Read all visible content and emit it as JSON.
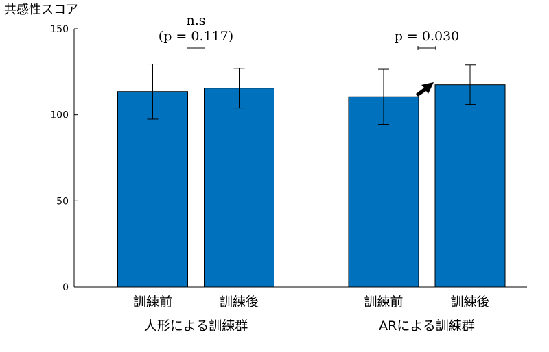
{
  "chart_data": {
    "type": "bar",
    "ylabel": "共感性スコア",
    "ylim": [
      0,
      150
    ],
    "yticks": [
      0,
      50,
      100,
      150
    ],
    "bar_color": "#0072BD",
    "groups": [
      {
        "label": "人形による訓練群",
        "categories": [
          "訓練前",
          "訓練後"
        ],
        "values": [
          113.5,
          115.5
        ],
        "error_low": [
          97.5,
          104
        ],
        "error_high": [
          129.5,
          127
        ],
        "annotation_lines": [
          "n.s",
          "(p = 0.117)"
        ],
        "arrow": false
      },
      {
        "label": "ARによる訓練群",
        "categories": [
          "訓練前",
          "訓練後"
        ],
        "values": [
          110.5,
          117.5
        ],
        "error_low": [
          94.5,
          106
        ],
        "error_high": [
          126.5,
          129
        ],
        "annotation_lines": [
          "p = 0.030"
        ],
        "arrow": true
      }
    ]
  }
}
